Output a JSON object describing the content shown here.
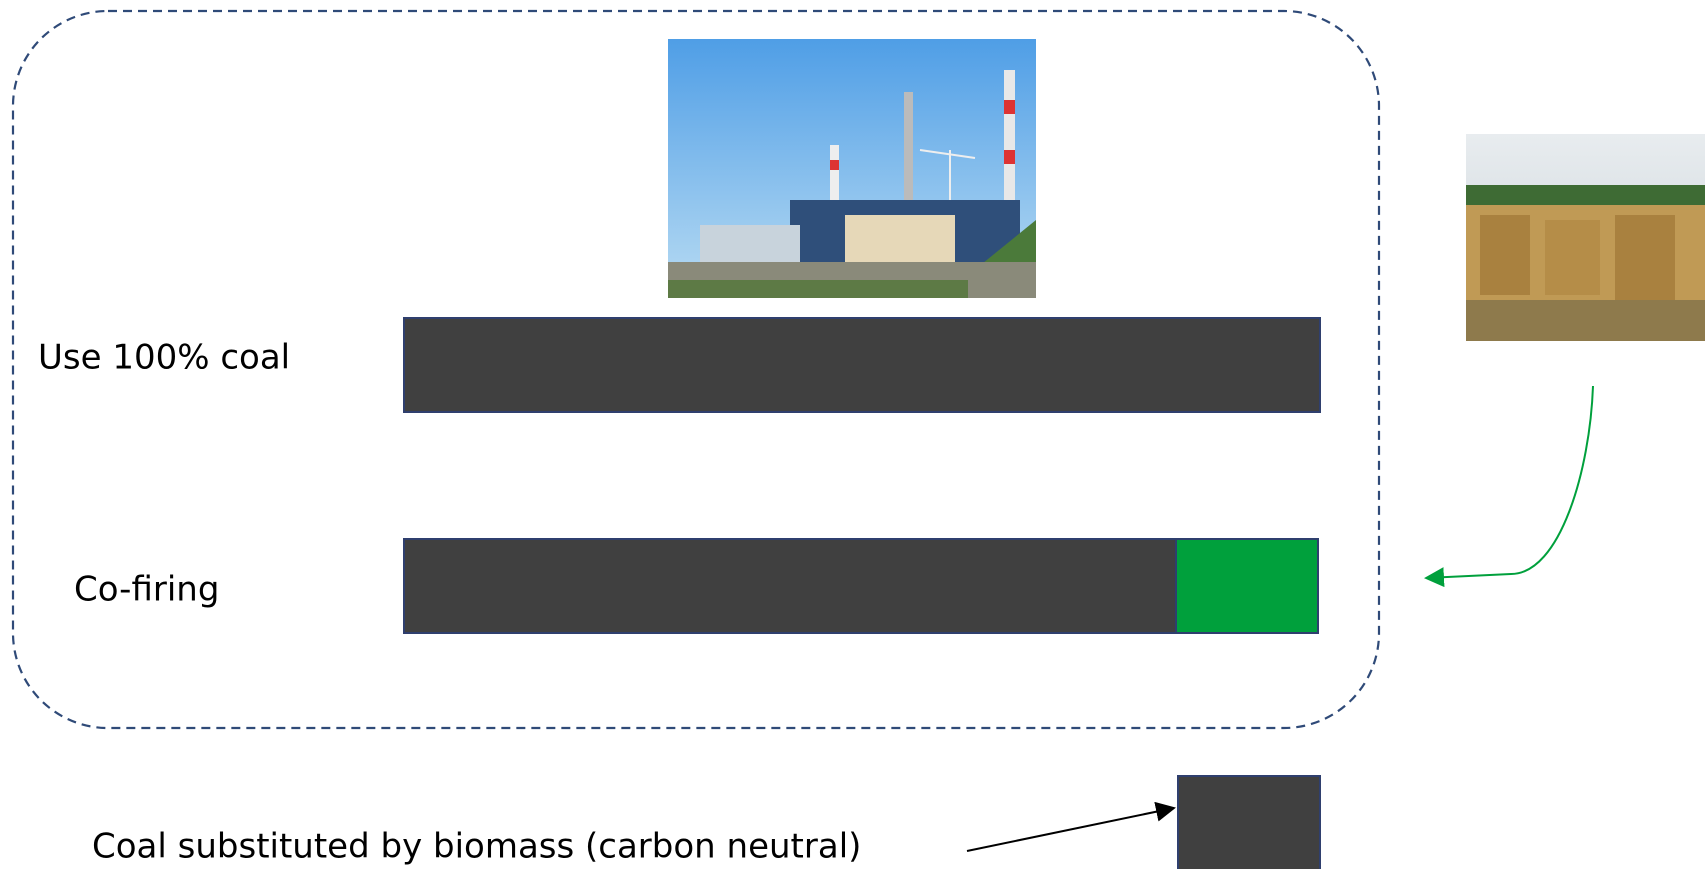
{
  "rows": [
    {
      "label": "Use 100% coal"
    },
    {
      "label": "Co-firing"
    }
  ],
  "legend": {
    "label": "Coal substituted by biomass (carbon neutral)"
  }
}
